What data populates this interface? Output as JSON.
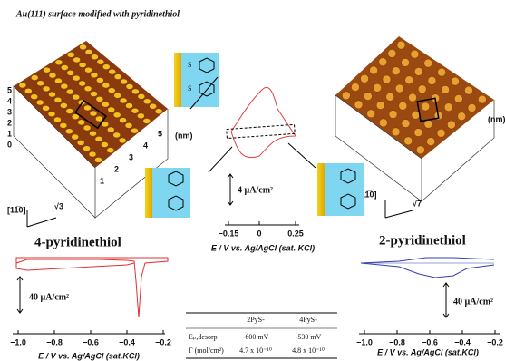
{
  "title": "Au(111) surface modified with pyridinethiol",
  "left": {
    "label": "4-pyridinethiol",
    "afm_nm": "(nm)",
    "afm_dir": "[11̅0]",
    "afm_rt": "√3",
    "afm_ticks": [
      "5",
      "4",
      "3",
      "2",
      "1",
      "0",
      "1",
      "2",
      "3",
      "4",
      "5"
    ],
    "cv_scale": "40 µA/cm²",
    "cv_ticks": [
      "−1.0",
      "−0.8",
      "−0.6",
      "−0.4",
      "−0.2"
    ],
    "cv_xlabel": "E / V vs. Ag/AgCl (sat.KCl)"
  },
  "right": {
    "label": "2-pyridinethiol",
    "afm_nm": "(nm)",
    "afm_dir": "[11̅0]",
    "afm_rt": "√7",
    "cv_scale": "40 µA/cm²",
    "cv_ticks": [
      "−1.0",
      "−0.8",
      "−0.6",
      "−0.4",
      "−0.2"
    ],
    "cv_xlabel": "E / V vs. Ag/AgCl (sat.KCl)"
  },
  "center": {
    "cv_scale": "4 µA/cm²",
    "cv_ticks": [
      "−0.15",
      "0",
      "0.25"
    ],
    "cv_xlabel": "E / V vs. Ag/AgCl (sat. KCl)"
  },
  "table": {
    "header": [
      "2PyS-",
      "4PyS-"
    ],
    "rows": [
      [
        "Eₚ,desorp",
        "-600 mV",
        "-530 mV"
      ],
      [
        "Γ (mol/cm²)",
        "4.7 x 10⁻¹⁰",
        "4.8 x 10⁻¹⁰"
      ]
    ]
  }
}
